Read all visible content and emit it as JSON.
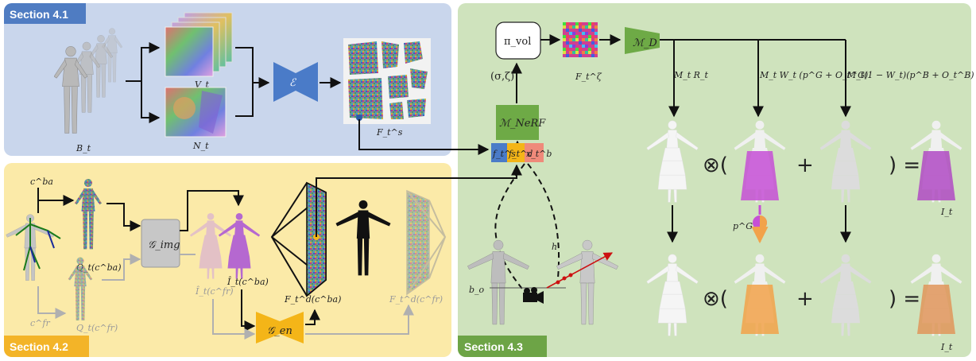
{
  "sections": {
    "s41": "Section 4.1",
    "s42": "Section 4.2",
    "s43": "Section 4.3"
  },
  "s41_labels": {
    "B_t": "B_t",
    "V_t": "V_t",
    "N_t": "N_t",
    "E": "ℰ",
    "F_t_s": "F_t^s"
  },
  "s42_labels": {
    "c_ba": "c^ba",
    "c_fr": "c^fr",
    "Q_ba": "Q_t(c^ba)",
    "Q_fr": "Q_t(c^fr)",
    "G_img": "𝒢_img",
    "I_fr": "Î_t(c^fr)",
    "I_ba": "Î_t(c^ba)",
    "G_en": "𝒢_en",
    "F_d_ba": "F_t^d(c^ba)",
    "F_d_fr": "F_t^d(c^fr)"
  },
  "s43_labels": {
    "pi_vol": "π_vol",
    "sigma_zeta": "(σ,ζ)",
    "F_zeta": "F_t^ζ",
    "M_D": "ℳ_D",
    "M_NeRF": "ℳ_NeRF",
    "feat_s": "f_t^s",
    "feat_d": "f_t^d",
    "feat_b": "x_t^b",
    "MR": "M_t R_t",
    "MWp": "M_t W_t (p^G + O_t^G)",
    "M1Wp": "M_t(1 − W_t)(p^B + O_t^B)",
    "h": "h",
    "b_o": "b_o",
    "p_G": "p^G:",
    "I_t_top": "I_t",
    "I_t_bot": "I_t",
    "otimes": "⊗(",
    "plus": "+",
    "close_eq": ") ="
  },
  "colors": {
    "s41_bg": "#c9d6ec",
    "s41_tag": "#4f7cc2",
    "s42_bg": "#fbeaa8",
    "s42_tag": "#f3b428",
    "s43_bg": "#cfe3bd",
    "s43_tag": "#6da446",
    "encoder": "#4a7bc8",
    "nerf_box": "#6eaa46",
    "gen_box": "#f4b518",
    "img_box": "#c7c7c7",
    "magenta": "#c64fd6",
    "orange": "#f2a24a",
    "ray": "#cc1111"
  },
  "icons": [
    "body-mesh-icon",
    "texture-map-icon",
    "encoder-icon",
    "camera-icon",
    "frustum-icon",
    "skeleton-icon",
    "avatar-render-icon"
  ]
}
